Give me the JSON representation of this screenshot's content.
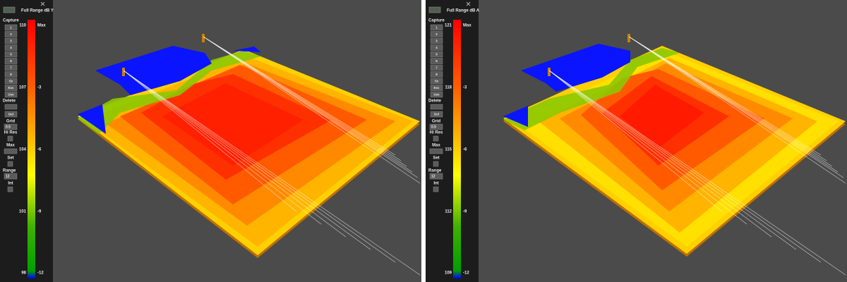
{
  "panels": [
    {
      "title": "Full Range dB Y",
      "sidebar": {
        "capture": "Capture",
        "buttons": [
          "1",
          "2",
          "3",
          "4",
          "5",
          "6",
          "7",
          "8",
          "Sv",
          "Exc",
          "Use"
        ],
        "delete": "Delete",
        "del": "Del",
        "grid": "Grid",
        "grid_value": "0.5",
        "hi_res": "Hi Res",
        "max": "Max",
        "set": "Set",
        "range": "Range",
        "range_value": "12",
        "int": "Int"
      },
      "scale": {
        "levels": [
          "110",
          "107",
          "104",
          "101",
          "98"
        ],
        "relative": [
          "Max",
          "-3",
          "-6",
          "-9",
          "-12"
        ]
      }
    },
    {
      "title": "Full Range dB A",
      "sidebar": {
        "capture": "Capture",
        "buttons": [
          "1",
          "2",
          "3",
          "4",
          "5",
          "6",
          "7",
          "8",
          "Sv",
          "Exc",
          "Use"
        ],
        "delete": "Delete",
        "del": "Del",
        "grid": "Grid",
        "grid_value": "0.5",
        "hi_res": "Hi Res",
        "max": "Max",
        "set": "Set",
        "range": "Range",
        "range_value": "12",
        "int": "Int"
      },
      "scale": {
        "levels": [
          "121",
          "118",
          "115",
          "112",
          "109"
        ],
        "relative": [
          "Max",
          "-3",
          "-6",
          "-9",
          "-12"
        ]
      }
    }
  ]
}
